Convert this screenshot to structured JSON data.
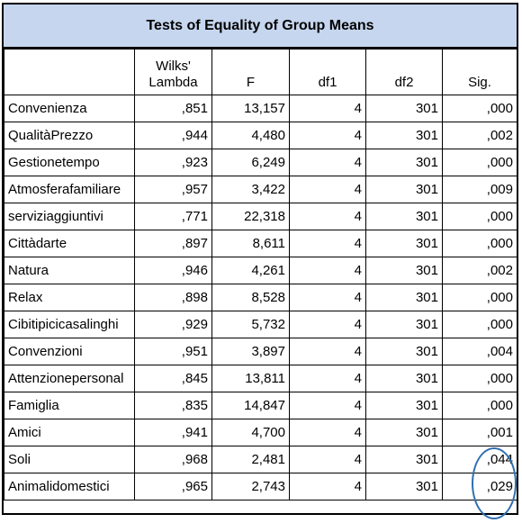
{
  "title": "Tests of Equality of Group Means",
  "columns": [
    "Wilks' Lambda",
    "F",
    "df1",
    "df2",
    "Sig."
  ],
  "rows": [
    {
      "label": "Convenienza",
      "wilks": ",851",
      "f": "13,157",
      "df1": "4",
      "df2": "301",
      "sig": ",000"
    },
    {
      "label": "QualitàPrezzo",
      "wilks": ",944",
      "f": "4,480",
      "df1": "4",
      "df2": "301",
      "sig": ",002"
    },
    {
      "label": "Gestionetempo",
      "wilks": ",923",
      "f": "6,249",
      "df1": "4",
      "df2": "301",
      "sig": ",000"
    },
    {
      "label": "Atmosferafamiliare",
      "wilks": ",957",
      "f": "3,422",
      "df1": "4",
      "df2": "301",
      "sig": ",009"
    },
    {
      "label": "serviziaggiuntivi",
      "wilks": ",771",
      "f": "22,318",
      "df1": "4",
      "df2": "301",
      "sig": ",000"
    },
    {
      "label": "Cittàdarte",
      "wilks": ",897",
      "f": "8,611",
      "df1": "4",
      "df2": "301",
      "sig": ",000"
    },
    {
      "label": "Natura",
      "wilks": ",946",
      "f": "4,261",
      "df1": "4",
      "df2": "301",
      "sig": ",002"
    },
    {
      "label": "Relax",
      "wilks": ",898",
      "f": "8,528",
      "df1": "4",
      "df2": "301",
      "sig": ",000"
    },
    {
      "label": "Cibitipicicasalinghi",
      "wilks": ",929",
      "f": "5,732",
      "df1": "4",
      "df2": "301",
      "sig": ",000"
    },
    {
      "label": "Convenzioni",
      "wilks": ",951",
      "f": "3,897",
      "df1": "4",
      "df2": "301",
      "sig": ",004"
    },
    {
      "label": "Attenzionepersonal",
      "wilks": ",845",
      "f": "13,811",
      "df1": "4",
      "df2": "301",
      "sig": ",000"
    },
    {
      "label": "Famiglia",
      "wilks": ",835",
      "f": "14,847",
      "df1": "4",
      "df2": "301",
      "sig": ",000"
    },
    {
      "label": "Amici",
      "wilks": ",941",
      "f": "4,700",
      "df1": "4",
      "df2": "301",
      "sig": ",001"
    },
    {
      "label": "Soli",
      "wilks": ",968",
      "f": "2,481",
      "df1": "4",
      "df2": "301",
      "sig": ",044"
    },
    {
      "label": "Animalidomestici",
      "wilks": ",965",
      "f": "2,743",
      "df1": "4",
      "df2": "301",
      "sig": ",029"
    }
  ],
  "colors": {
    "title_background": "#c6d6ee",
    "highlight_circle": "#2f6fb0"
  }
}
